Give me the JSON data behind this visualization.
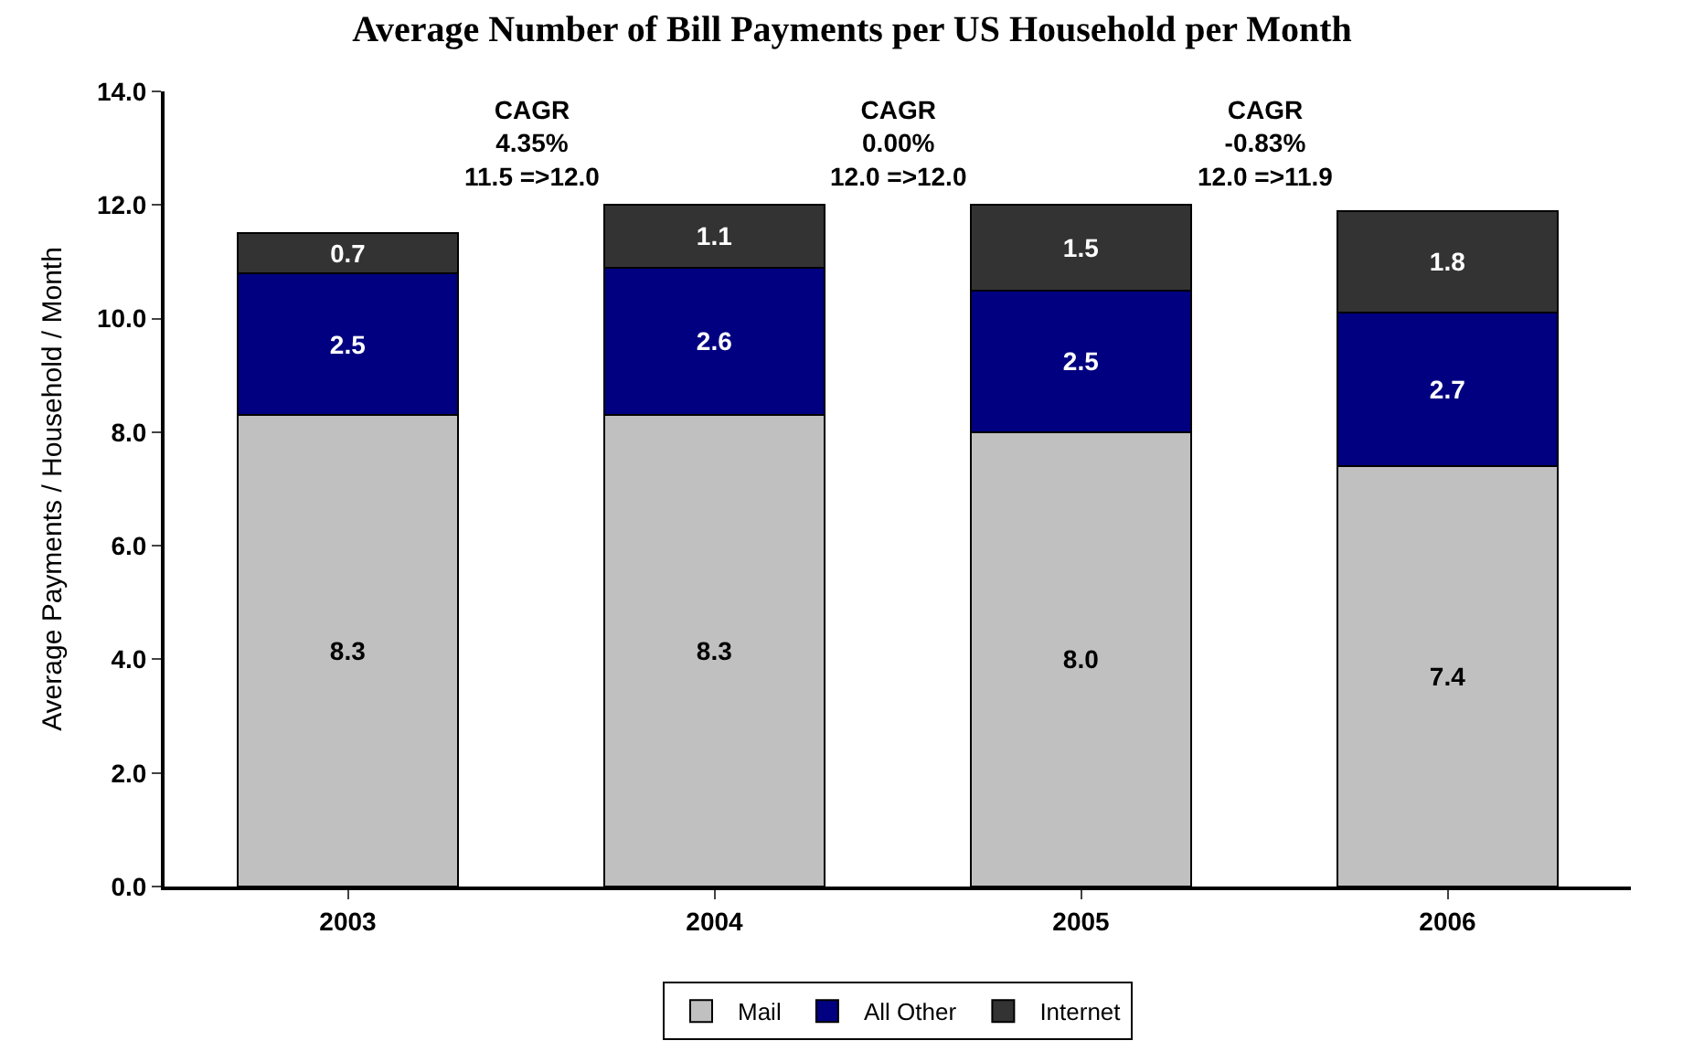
{
  "chart_data": {
    "type": "bar",
    "stacked": true,
    "title": "Average Number of Bill Payments per US Household per Month",
    "ylabel": "Average Payments / Household / Month",
    "categories": [
      "2003",
      "2004",
      "2005",
      "2006"
    ],
    "series": [
      {
        "name": "Mail",
        "color": "#c0c0c0",
        "values": [
          8.3,
          8.3,
          8.0,
          7.4
        ],
        "value_labels": [
          "8.3",
          "8.3",
          "8.0",
          "7.4"
        ]
      },
      {
        "name": "All Other",
        "color": "#000080",
        "values": [
          2.5,
          2.6,
          2.5,
          2.7
        ],
        "value_labels": [
          "2.5",
          "2.6",
          "2.5",
          "2.7"
        ]
      },
      {
        "name": "Internet",
        "color": "#333333",
        "values": [
          0.7,
          1.1,
          1.5,
          1.8
        ],
        "value_labels": [
          "0.7",
          "1.1",
          "1.5",
          "1.8"
        ]
      }
    ],
    "ylim": [
      0,
      14
    ],
    "yticks": [
      {
        "value": 0,
        "label": "0.0"
      },
      {
        "value": 2,
        "label": "2.0"
      },
      {
        "value": 4,
        "label": "4.0"
      },
      {
        "value": 6,
        "label": "6.0"
      },
      {
        "value": 8,
        "label": "8.0"
      },
      {
        "value": 10,
        "label": "10.0"
      },
      {
        "value": 12,
        "label": "12.0"
      },
      {
        "value": 14,
        "label": "14.0"
      }
    ],
    "legend": "bottom",
    "annotations": [
      "CAGR\n4.35%\n11.5 =>12.0",
      "CAGR\n0.00%\n12.0 =>12.0",
      "CAGR\n-0.83%\n12.0 =>11.9"
    ]
  }
}
